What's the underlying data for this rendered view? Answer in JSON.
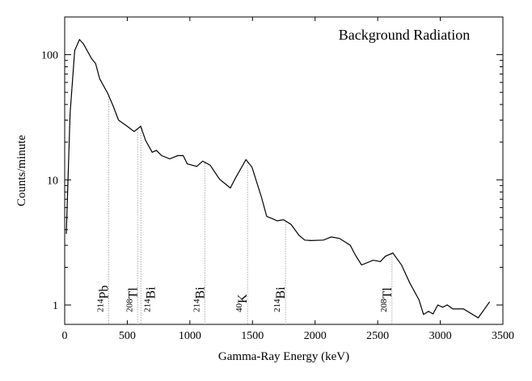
{
  "chart_data": {
    "type": "line",
    "title": "Background Radiation",
    "xlabel": "Gamma-Ray Energy (keV)",
    "ylabel": "Counts/minute",
    "xlim": [
      0,
      3500
    ],
    "ylim": [
      0.7,
      200
    ],
    "yscale": "log",
    "grid": false,
    "legend": "none",
    "x_ticks": [
      0,
      500,
      1000,
      1500,
      2000,
      2500,
      3000,
      3500
    ],
    "y_ticks": [
      1,
      10,
      100
    ],
    "line_color": "#000000",
    "series": [
      {
        "x": [
          13,
          43,
          80,
          118,
          150,
          215,
          247,
          280,
          344,
          387,
          430,
          495,
          555,
          607,
          646,
          699,
          732,
          775,
          839,
          904,
          947,
          979,
          1055,
          1102,
          1162,
          1237,
          1323,
          1366,
          1448,
          1496,
          1571,
          1614,
          1657,
          1698,
          1748,
          1808,
          1872,
          1917,
          1969,
          2066,
          2130,
          2195,
          2281,
          2324,
          2371,
          2464,
          2522,
          2561,
          2621,
          2690,
          2755,
          2830,
          2866,
          2905,
          2942,
          2980,
          3019,
          3056,
          3099,
          3185,
          3303,
          3394
        ],
        "y": [
          3.7,
          34,
          108,
          132,
          122,
          93,
          85,
          64,
          49,
          39,
          30,
          27,
          24.3,
          26.8,
          20.7,
          16.6,
          17.2,
          15.6,
          14.7,
          15.6,
          15.6,
          13.4,
          12.8,
          14.1,
          13.1,
          10.1,
          8.6,
          10.4,
          14.5,
          12.6,
          7.3,
          5.1,
          4.9,
          4.7,
          4.8,
          4.4,
          3.6,
          3.3,
          3.27,
          3.3,
          3.5,
          3.4,
          3.0,
          2.48,
          2.09,
          2.28,
          2.22,
          2.45,
          2.6,
          2.09,
          1.51,
          1.1,
          0.84,
          0.89,
          0.85,
          1.0,
          0.96,
          1.0,
          0.93,
          0.93,
          0.79,
          1.06
        ]
      }
    ],
    "annotations": [
      {
        "mass": "214",
        "element": "Pb",
        "energy": 352
      },
      {
        "mass": "208",
        "element": "Tl",
        "energy": 583
      },
      {
        "mass": "214",
        "element": "Bi",
        "energy": 609
      },
      {
        "mass": "214",
        "element": "Bi",
        "energy": 1120
      },
      {
        "mass": "40",
        "element": "K",
        "energy": 1461
      },
      {
        "mass": "214",
        "element": "Bi",
        "energy": 1764
      },
      {
        "mass": "208",
        "element": "Tl",
        "energy": 2614
      }
    ]
  }
}
